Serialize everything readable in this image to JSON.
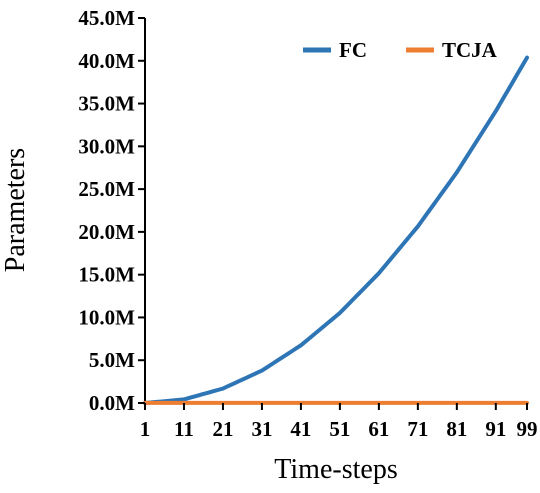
{
  "chart_data": {
    "type": "line",
    "xlabel": "Time-steps",
    "ylabel": "Parameters",
    "xlim": [
      1,
      99
    ],
    "ylim": [
      0,
      45000000
    ],
    "x_ticks": [
      1,
      11,
      21,
      31,
      41,
      51,
      61,
      71,
      81,
      91,
      99
    ],
    "y_ticks": [
      {
        "value": 0,
        "label": "0.0M"
      },
      {
        "value": 5000000,
        "label": "5.0M"
      },
      {
        "value": 10000000,
        "label": "10.0M"
      },
      {
        "value": 15000000,
        "label": "15.0M"
      },
      {
        "value": 20000000,
        "label": "20.0M"
      },
      {
        "value": 25000000,
        "label": "25.0M"
      },
      {
        "value": 30000000,
        "label": "30.0M"
      },
      {
        "value": 35000000,
        "label": "35.0M"
      },
      {
        "value": 40000000,
        "label": "40.0M"
      },
      {
        "value": 45000000,
        "label": "45.0M"
      }
    ],
    "grid": false,
    "legend_position": "top-right",
    "series": [
      {
        "name": "FC",
        "color": "#2e75b6",
        "x": [
          1,
          11,
          21,
          31,
          41,
          51,
          61,
          71,
          81,
          91,
          99
        ],
        "y": [
          0,
          420000,
          1690000,
          3790000,
          6740000,
          10530000,
          15170000,
          20640000,
          26960000,
          34120000,
          40370000
        ]
      },
      {
        "name": "TCJA",
        "color": "#ed7d31",
        "x": [
          1,
          11,
          21,
          31,
          41,
          51,
          61,
          71,
          81,
          91,
          99
        ],
        "y": [
          10000,
          10000,
          10000,
          10000,
          10000,
          10000,
          10000,
          10000,
          10000,
          10000,
          10000
        ]
      }
    ]
  }
}
